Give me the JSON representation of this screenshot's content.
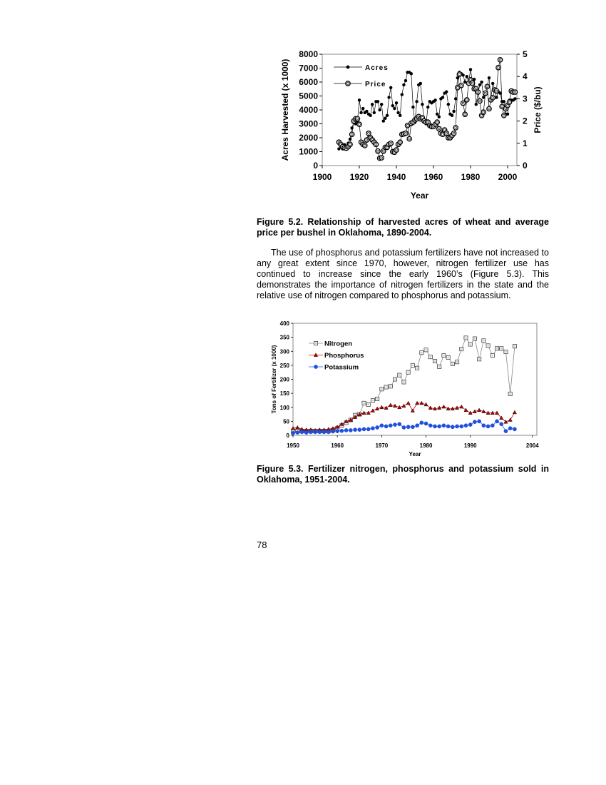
{
  "fig52": {
    "caption": "Figure 5.2.  Relationship of harvested acres of wheat and average price per bushel in Oklahoma, 1890-2004."
  },
  "paragraph": "The use of phosphorus and potassium fertilizers have not increased to any great extent since 1970, however, nitrogen fertilizer use has continued to increase since the early 1960’s (Figure 5.3).   This demonstrates the importance of nitrogen fertilizers in the state and the relative use of nitrogen compared to phosphorus and potassium.",
  "fig53": {
    "caption": "Figure 5.3.  Fertilizer nitrogen, phosphorus and potassium sold in Oklahoma, 1951-2004."
  },
  "page_number": "78",
  "chart_data": [
    {
      "type": "line",
      "xlabel": "Year",
      "ylabel": "Acres Harvested (x 1000)",
      "y2label": "Price ($/bu)",
      "xlim": [
        1900,
        2005
      ],
      "ylim": [
        0,
        8000
      ],
      "y2lim": [
        0,
        5
      ],
      "xticks": [
        "1900",
        "1920",
        "1940",
        "1960",
        "1980",
        "2000"
      ],
      "yticks": [
        "0",
        "1000",
        "2000",
        "3000",
        "4000",
        "5000",
        "6000",
        "7000",
        "8000"
      ],
      "y2ticks": [
        "0",
        "1",
        "2",
        "3",
        "4",
        "5"
      ],
      "legend_position": "top-left",
      "series": [
        {
          "name": "Acres",
          "axis": "left",
          "marker": "filled-circle",
          "x": [
            1909,
            1910,
            1911,
            1912,
            1913,
            1914,
            1915,
            1916,
            1917,
            1918,
            1919,
            1920,
            1921,
            1922,
            1923,
            1924,
            1925,
            1926,
            1927,
            1928,
            1929,
            1930,
            1931,
            1932,
            1933,
            1934,
            1935,
            1936,
            1937,
            1938,
            1939,
            1940,
            1941,
            1942,
            1943,
            1944,
            1945,
            1946,
            1947,
            1948,
            1949,
            1950,
            1951,
            1952,
            1953,
            1954,
            1955,
            1956,
            1957,
            1958,
            1959,
            1960,
            1961,
            1962,
            1963,
            1964,
            1965,
            1966,
            1967,
            1968,
            1969,
            1970,
            1971,
            1972,
            1973,
            1974,
            1975,
            1976,
            1977,
            1978,
            1979,
            1980,
            1981,
            1982,
            1983,
            1984,
            1985,
            1986,
            1987,
            1988,
            1989,
            1990,
            1991,
            1992,
            1993,
            1994,
            1995,
            1996,
            1997,
            1998,
            1999,
            2000,
            2001,
            2002,
            2003,
            2004
          ],
          "values": [
            1200,
            1400,
            1200,
            1500,
            1300,
            1600,
            1900,
            2700,
            3100,
            3000,
            3200,
            4700,
            3800,
            4100,
            3800,
            3900,
            3700,
            3600,
            4400,
            3800,
            4600,
            4600,
            4000,
            4400,
            3200,
            3400,
            3600,
            4900,
            5600,
            4300,
            4100,
            4500,
            3800,
            3600,
            5100,
            5800,
            6100,
            6700,
            6700,
            6600,
            4200,
            3100,
            4600,
            5800,
            5900,
            4400,
            3200,
            3000,
            4200,
            4600,
            4500,
            4600,
            4700,
            3700,
            3500,
            4800,
            4900,
            5200,
            5300,
            4400,
            3700,
            3600,
            3900,
            4800,
            6300,
            6700,
            6600,
            6500,
            6000,
            6400,
            6000,
            6900,
            6000,
            6200,
            4400,
            5200,
            5800,
            6000,
            4900,
            5200,
            5700,
            6300,
            4800,
            5900,
            5500,
            4900,
            5300,
            5200,
            4600,
            4600,
            3700,
            3700,
            4700,
            4700,
            4700,
            4800
          ]
        },
        {
          "name": "Price",
          "axis": "right",
          "marker": "open-circle",
          "x": [
            1909,
            1910,
            1911,
            1912,
            1913,
            1914,
            1915,
            1916,
            1917,
            1918,
            1919,
            1920,
            1921,
            1922,
            1923,
            1924,
            1925,
            1926,
            1927,
            1928,
            1929,
            1930,
            1931,
            1932,
            1933,
            1934,
            1935,
            1936,
            1937,
            1938,
            1939,
            1940,
            1941,
            1942,
            1943,
            1944,
            1945,
            1946,
            1947,
            1948,
            1949,
            1950,
            1951,
            1952,
            1953,
            1954,
            1955,
            1956,
            1957,
            1958,
            1959,
            1960,
            1961,
            1962,
            1963,
            1964,
            1965,
            1966,
            1967,
            1968,
            1969,
            1970,
            1971,
            1972,
            1973,
            1974,
            1975,
            1976,
            1977,
            1978,
            1979,
            1980,
            1981,
            1982,
            1983,
            1984,
            1985,
            1986,
            1987,
            1988,
            1989,
            1990,
            1991,
            1992,
            1993,
            1994,
            1995,
            1996,
            1997,
            1998,
            1999,
            2000,
            2001,
            2002,
            2003,
            2004
          ],
          "values": [
            1.05,
            0.95,
            0.85,
            0.8,
            0.78,
            0.85,
            0.95,
            1.4,
            2.0,
            2.1,
            2.1,
            1.85,
            1.05,
            0.95,
            0.9,
            1.15,
            1.45,
            1.25,
            1.15,
            1.05,
            0.95,
            0.65,
            0.33,
            0.35,
            0.65,
            0.82,
            0.82,
            0.95,
            1.0,
            0.62,
            0.6,
            0.7,
            0.95,
            1.05,
            1.4,
            1.42,
            1.45,
            1.8,
            1.2,
            1.9,
            1.95,
            2.05,
            2.1,
            2.2,
            2.1,
            2.15,
            2.0,
            1.95,
            1.95,
            1.8,
            1.75,
            1.75,
            1.85,
            1.95,
            1.65,
            1.45,
            1.4,
            1.6,
            1.45,
            1.25,
            1.25,
            1.35,
            1.45,
            1.7,
            3.5,
            4.1,
            3.6,
            2.8,
            2.3,
            2.95,
            3.7,
            3.85,
            3.7,
            3.45,
            3.45,
            3.3,
            2.9,
            2.25,
            2.4,
            3.25,
            3.55,
            2.55,
            2.95,
            3.05,
            3.4,
            3.35,
            4.4,
            4.75,
            2.65,
            2.25,
            2.55,
            2.7,
            2.85,
            3.35,
            3.3,
            3.3
          ]
        }
      ]
    },
    {
      "type": "line",
      "xlabel": "Year",
      "ylabel": "Tons of Fertilizer (x 1000)",
      "xlim": [
        1950,
        2005
      ],
      "ylim": [
        0,
        400
      ],
      "xticks": [
        "1950",
        "1960",
        "1970",
        "1980",
        "1990",
        "2004"
      ],
      "xtick_values": [
        1950,
        1960,
        1970,
        1980,
        1990,
        2004
      ],
      "yticks": [
        "0",
        "50",
        "100",
        "150",
        "200",
        "250",
        "300",
        "350",
        "400"
      ],
      "legend_position": "top-left",
      "series": [
        {
          "name": "Nitrogen",
          "color": "#888888",
          "marker": "open-square",
          "x": [
            1950,
            1951,
            1952,
            1953,
            1954,
            1955,
            1956,
            1957,
            1958,
            1959,
            1960,
            1961,
            1962,
            1963,
            1964,
            1965,
            1966,
            1967,
            1968,
            1969,
            1970,
            1971,
            1972,
            1973,
            1974,
            1975,
            1976,
            1977,
            1978,
            1979,
            1980,
            1981,
            1982,
            1983,
            1984,
            1985,
            1986,
            1987,
            1988,
            1989,
            1990,
            1991,
            1992,
            1993,
            1994,
            1995,
            1996,
            1997,
            1998,
            1999,
            2000
          ],
          "values": [
            15,
            15,
            15,
            15,
            15,
            15,
            15,
            15,
            15,
            18,
            25,
            35,
            45,
            55,
            72,
            75,
            115,
            110,
            125,
            130,
            165,
            172,
            175,
            200,
            215,
            190,
            225,
            250,
            240,
            295,
            305,
            280,
            265,
            245,
            285,
            278,
            255,
            262,
            308,
            348,
            325,
            345,
            272,
            338,
            320,
            285,
            310,
            310,
            298,
            148,
            318
          ]
        },
        {
          "name": "Phosphorus",
          "color": "#c00000",
          "marker": "filled-triangle",
          "x": [
            1950,
            1951,
            1952,
            1953,
            1954,
            1955,
            1956,
            1957,
            1958,
            1959,
            1960,
            1961,
            1962,
            1963,
            1964,
            1965,
            1966,
            1967,
            1968,
            1969,
            1970,
            1971,
            1972,
            1973,
            1974,
            1975,
            1976,
            1977,
            1978,
            1979,
            1980,
            1981,
            1982,
            1983,
            1984,
            1985,
            1986,
            1987,
            1988,
            1989,
            1990,
            1991,
            1992,
            1993,
            1994,
            1995,
            1996,
            1997,
            1998,
            1999,
            2000
          ],
          "values": [
            25,
            28,
            22,
            20,
            20,
            18,
            20,
            20,
            22,
            25,
            30,
            40,
            50,
            55,
            65,
            75,
            80,
            80,
            88,
            95,
            100,
            98,
            108,
            105,
            100,
            105,
            115,
            88,
            115,
            115,
            110,
            98,
            95,
            98,
            102,
            95,
            95,
            98,
            102,
            90,
            80,
            85,
            90,
            85,
            80,
            80,
            80,
            62,
            48,
            55,
            82
          ]
        },
        {
          "name": "Potassium",
          "color": "#2050e0",
          "marker": "filled-circle",
          "x": [
            1950,
            1951,
            1952,
            1953,
            1954,
            1955,
            1956,
            1957,
            1958,
            1959,
            1960,
            1961,
            1962,
            1963,
            1964,
            1965,
            1966,
            1967,
            1968,
            1969,
            1970,
            1971,
            1972,
            1973,
            1974,
            1975,
            1976,
            1977,
            1978,
            1979,
            1980,
            1981,
            1982,
            1983,
            1984,
            1985,
            1986,
            1987,
            1988,
            1989,
            1990,
            1991,
            1992,
            1993,
            1994,
            1995,
            1996,
            1997,
            1998,
            1999,
            2000
          ],
          "values": [
            8,
            10,
            12,
            10,
            12,
            12,
            12,
            12,
            12,
            14,
            15,
            16,
            18,
            18,
            20,
            20,
            22,
            22,
            25,
            28,
            35,
            32,
            35,
            38,
            40,
            28,
            30,
            30,
            35,
            45,
            42,
            35,
            32,
            32,
            35,
            32,
            30,
            32,
            32,
            35,
            38,
            48,
            50,
            35,
            32,
            35,
            50,
            40,
            15,
            25,
            22
          ]
        }
      ]
    }
  ]
}
